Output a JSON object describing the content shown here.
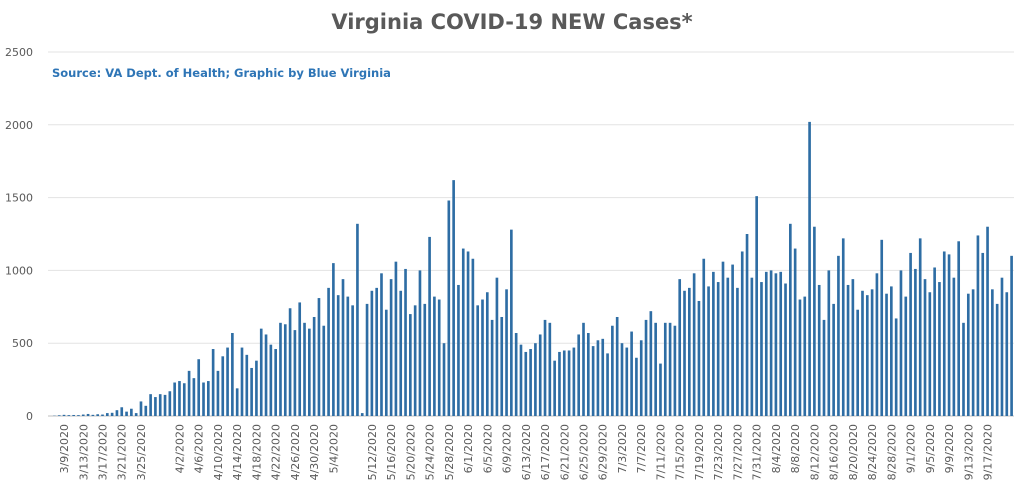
{
  "chart_data": {
    "type": "bar",
    "title": "Virginia COVID-19 NEW Cases*",
    "annotation": "Source: VA Dept. of Health; Graphic by Blue Virginia",
    "xlabel": "",
    "ylabel": "",
    "ylim": [
      0,
      2500
    ],
    "yticks": [
      0,
      500,
      1000,
      1500,
      2000,
      2500
    ],
    "grid": true,
    "legend": "none",
    "bar_color": "#2e6da4",
    "x_tick_labels": [
      "3/9/2020",
      "3/13/2020",
      "3/17/2020",
      "3/21/2020",
      "3/25/2020",
      "4/2/2020",
      "4/6/2020",
      "4/10/2020",
      "4/14/2020",
      "4/18/2020",
      "4/22/2020",
      "4/26/2020",
      "4/30/2020",
      "5/4/2020",
      "5/12/2020",
      "5/16/2020",
      "5/20/2020",
      "5/24/2020",
      "5/28/2020",
      "6/1/2020",
      "6/5/2020",
      "6/9/2020",
      "6/13/2020",
      "6/17/2020",
      "6/21/2020",
      "6/25/2020",
      "6/29/2020",
      "7/3/2020",
      "7/7/2020",
      "7/11/2020",
      "7/15/2020",
      "7/19/2020",
      "7/23/2020",
      "7/27/2020",
      "7/31/2020",
      "8/4/2020",
      "8/8/2020",
      "8/12/2020",
      "8/16/2020",
      "8/20/2020",
      "8/24/2020",
      "8/28/2020",
      "9/1/2020",
      "9/5/2020",
      "9/9/2020",
      "9/13/2020",
      "9/17/2020"
    ],
    "start_date": "2020-03-07",
    "values": [
      2,
      5,
      8,
      6,
      7,
      6,
      10,
      14,
      8,
      12,
      10,
      20,
      22,
      40,
      60,
      30,
      50,
      20,
      100,
      70,
      150,
      130,
      150,
      145,
      170,
      230,
      240,
      225,
      310,
      260,
      390,
      230,
      240,
      460,
      310,
      410,
      470,
      570,
      190,
      470,
      420,
      330,
      380,
      600,
      560,
      490,
      460,
      640,
      630,
      740,
      590,
      780,
      640,
      600,
      680,
      810,
      620,
      880,
      1050,
      830,
      940,
      820,
      760,
      1320,
      20,
      770,
      860,
      880,
      980,
      730,
      940,
      1060,
      860,
      1010,
      700,
      760,
      1000,
      770,
      1230,
      820,
      800,
      500,
      1480,
      1620,
      900,
      1150,
      1130,
      1080,
      760,
      800,
      850,
      660,
      950,
      680,
      870,
      1280,
      570,
      490,
      440,
      460,
      500,
      560,
      660,
      640,
      380,
      440,
      450,
      450,
      470,
      560,
      640,
      570,
      480,
      520,
      530,
      430,
      620,
      680,
      500,
      470,
      580,
      400,
      520,
      660,
      720,
      640,
      360,
      640,
      640,
      620,
      940,
      860,
      880,
      980,
      790,
      1080,
      890,
      990,
      920,
      1060,
      950,
      1040,
      880,
      1130,
      1250,
      950,
      1510,
      920,
      990,
      1000,
      980,
      990,
      910,
      1320,
      1150,
      800,
      820,
      2020,
      1300,
      900,
      660,
      1000,
      770,
      1100,
      1220,
      900,
      940,
      730,
      860,
      830,
      870,
      980,
      1210,
      840,
      890,
      670,
      1000,
      820,
      1120,
      1010,
      1220,
      940,
      850,
      1020,
      920,
      1130,
      1110,
      950,
      1200,
      640,
      840,
      870,
      1240,
      1120,
      1300,
      870,
      770,
      950,
      850,
      1100
    ]
  }
}
